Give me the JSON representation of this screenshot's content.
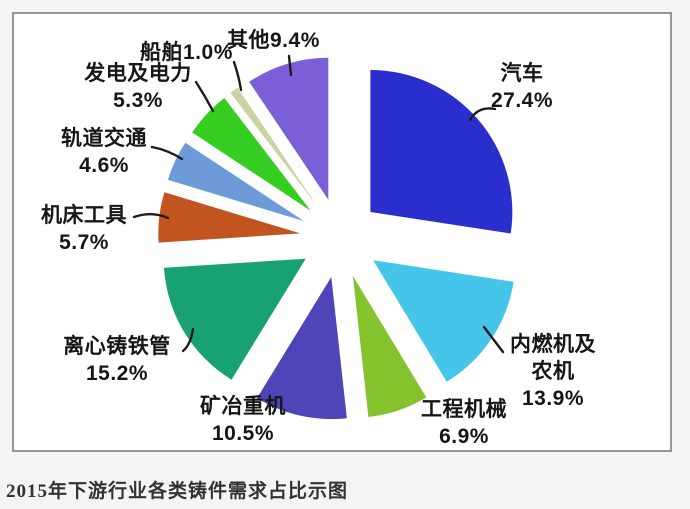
{
  "caption": "2015年下游行业各类铸件需求占比示图",
  "chart_data": {
    "type": "pie",
    "exploded": true,
    "start_angle_deg": -90,
    "direction": "clockwise",
    "unit": "%",
    "slices": [
      {
        "label": "汽车",
        "value": 27.4,
        "display": "27.4%",
        "color": "#2a2ecd"
      },
      {
        "label": "内燃机及农机",
        "value": 13.9,
        "display": "13.9%",
        "color": "#45c5e9"
      },
      {
        "label": "工程机械",
        "value": 6.9,
        "display": "6.9%",
        "color": "#84c32e"
      },
      {
        "label": "矿冶重机",
        "value": 10.5,
        "display": "10.5%",
        "color": "#4f45b8"
      },
      {
        "label": "离心铸铁管",
        "value": 15.2,
        "display": "15.2%",
        "color": "#18a173"
      },
      {
        "label": "机床工具",
        "value": 5.7,
        "display": "5.7%",
        "color": "#c1541f"
      },
      {
        "label": "轨道交通",
        "value": 4.6,
        "display": "4.6%",
        "color": "#6d9bd9"
      },
      {
        "label": "发电及电力",
        "value": 5.3,
        "display": "5.3%",
        "color": "#35cd21"
      },
      {
        "label": "船舶",
        "value": 1.0,
        "display": "1.0%",
        "color": "#cbd3a4"
      },
      {
        "label": "其他",
        "value": 9.4,
        "display": "9.4%",
        "color": "#7a5fd6"
      }
    ]
  }
}
